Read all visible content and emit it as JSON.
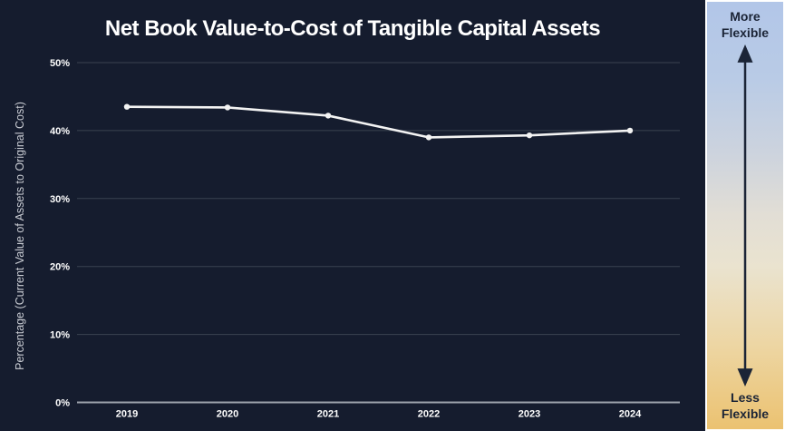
{
  "chart_data": {
    "type": "line",
    "title": "Net Book Value-to-Cost of Tangible Capital Assets",
    "ylabel": "Percentage (Current Value of Assets to Original Cost)",
    "xlabel": "",
    "categories": [
      "2019",
      "2020",
      "2021",
      "2022",
      "2023",
      "2024"
    ],
    "values": [
      43.5,
      43.4,
      42.2,
      39.0,
      39.3,
      40.0
    ],
    "ylim": [
      0,
      50
    ],
    "yticks": [
      "0%",
      "10%",
      "20%",
      "30%",
      "40%",
      "50%"
    ],
    "grid": true,
    "legend": "none",
    "line_color": "#f3f3f3",
    "marker": "circle",
    "grid_color": "#3a4250",
    "axis_color": "#9ba1ab",
    "tick_color": "#ffffff",
    "background": "#151c2e"
  },
  "sidebar": {
    "top_label": "More Flexible",
    "bottom_label": "Less Flexible",
    "arrow_direction": "double-vertical",
    "arrow_color": "#1b2436",
    "gradient_top": "#b2c6e8",
    "gradient_middle": "#e8e3d3",
    "gradient_bottom": "#ebc271",
    "border_color": "#ffffff"
  }
}
